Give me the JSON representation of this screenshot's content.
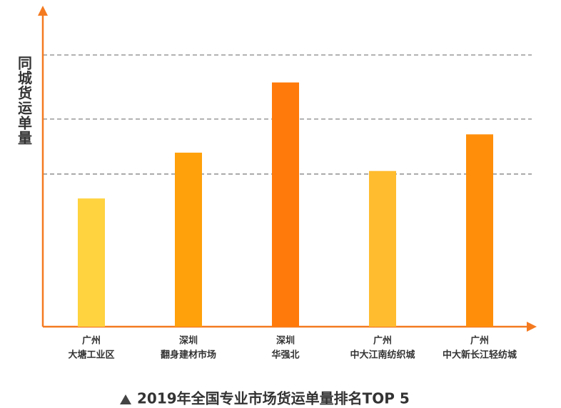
{
  "chart_data": {
    "type": "bar",
    "title": "2019年全国专业市场货运单量排名TOP 5",
    "y_label": "同城货运单量",
    "categories": [
      [
        "广州",
        "大塘工业区"
      ],
      [
        "深圳",
        "翻身建材市场"
      ],
      [
        "深圳",
        "华强北"
      ],
      [
        "广州",
        "中大江南纺织城"
      ],
      [
        "广州",
        "中大新长江轻纺城"
      ]
    ],
    "values": [
      42,
      57,
      80,
      51,
      63
    ],
    "colors": [
      "#ffd23f",
      "#ffa10a",
      "#ff7a0a",
      "#ffbc2e",
      "#ff8f0a"
    ],
    "ylim": [
      0,
      100
    ],
    "gridlines": [
      50,
      68,
      89
    ],
    "axis_color": "#f47a20"
  }
}
